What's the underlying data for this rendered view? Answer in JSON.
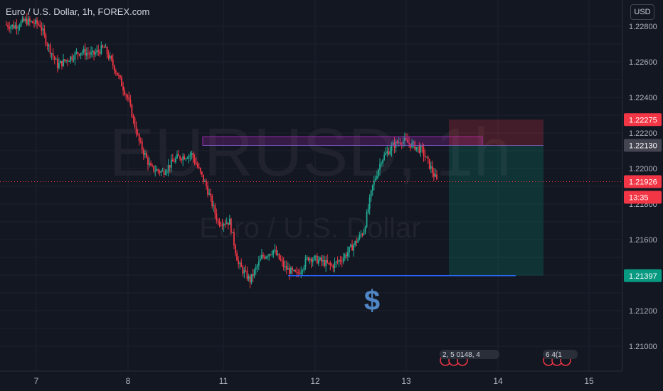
{
  "header": {
    "title": "Euro / U.S. Dollar, 1h, FOREX.com",
    "currency_button": "USD"
  },
  "watermark": {
    "symbol": "EURUSD, 1h",
    "name": "Euro / U.S. Dollar"
  },
  "chart_data": {
    "type": "candlestick",
    "symbol": "EURUSD",
    "interval": "1h",
    "x_ticks": [
      "7",
      "8",
      "11",
      "12",
      "13",
      "14",
      "15"
    ],
    "ylim": [
      1.2093,
      1.2293
    ],
    "y_ticks": [
      "1.22800",
      "1.22600",
      "1.22400",
      "1.22200",
      "1.22000",
      "1.21800",
      "1.21600",
      "1.21200",
      "1.21000"
    ],
    "price_labels": [
      {
        "value": "1.22275",
        "kind": "stop-loss",
        "color": "#f23645"
      },
      {
        "value": "1.22130",
        "kind": "entry",
        "color": "#434651"
      },
      {
        "value": "1.21926",
        "kind": "last-price",
        "color": "#f23645"
      },
      {
        "value": "13:35",
        "kind": "countdown",
        "color": "#f23645"
      },
      {
        "value": "1.21397",
        "kind": "take-profit",
        "color": "#089981"
      }
    ],
    "annotation_symbol": "$",
    "event_markers": [
      "2, 5 0148, 4",
      "6 4(1"
    ],
    "colors": {
      "up": "#22ab94",
      "down": "#f23645",
      "background": "#131722",
      "grid": "#1e222d"
    }
  }
}
